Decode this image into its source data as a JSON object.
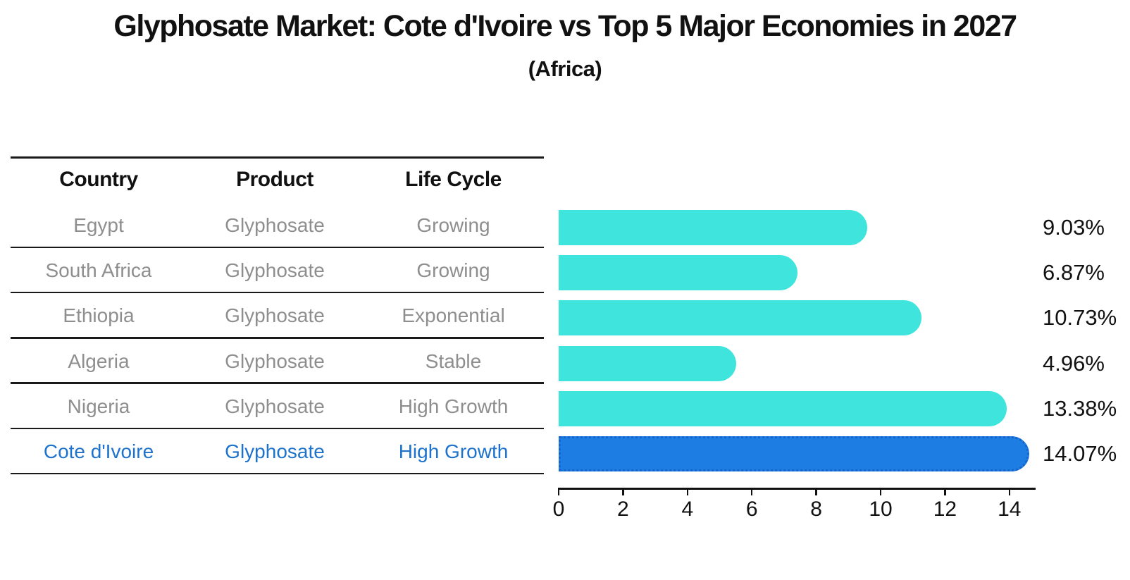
{
  "title": "Glyphosate Market: Cote d'Ivoire vs Top 5 Major Economies in 2027",
  "subtitle": "(Africa)",
  "table": {
    "headers": [
      "Country",
      "Product",
      "Life Cycle"
    ],
    "rows": [
      {
        "country": "Egypt",
        "product": "Glyphosate",
        "life_cycle": "Growing"
      },
      {
        "country": "South Africa",
        "product": "Glyphosate",
        "life_cycle": "Growing"
      },
      {
        "country": "Ethiopia",
        "product": "Glyphosate",
        "life_cycle": "Exponential"
      },
      {
        "country": "Algeria",
        "product": "Glyphosate",
        "life_cycle": "Stable"
      },
      {
        "country": "Nigeria",
        "product": "Glyphosate",
        "life_cycle": "High Growth"
      },
      {
        "country": "Cote d'Ivoire",
        "product": "Glyphosate",
        "life_cycle": "High Growth"
      }
    ],
    "highlight_row": 5
  },
  "chart_data": {
    "type": "bar",
    "orientation": "horizontal",
    "title": "Glyphosate Market: Cote d'Ivoire vs Top 5 Major Economies in 2027",
    "subtitle": "(Africa)",
    "categories": [
      "Egypt",
      "South Africa",
      "Ethiopia",
      "Algeria",
      "Nigeria",
      "Cote d'Ivoire"
    ],
    "values": [
      9.03,
      6.87,
      10.73,
      4.96,
      13.38,
      14.07
    ],
    "value_labels": [
      "9.03%",
      "6.87%",
      "10.73%",
      "4.96%",
      "13.38%",
      "14.07%"
    ],
    "x_ticks": [
      0,
      2,
      4,
      6,
      8,
      10,
      12,
      14
    ],
    "xlim": [
      0,
      14.8
    ],
    "grid": false,
    "legend": false,
    "highlight_index": 5,
    "bar_color_default": "#3FE4DC",
    "bar_color_highlight": "#1E7DE2",
    "highlight_border_color": "#1563CC"
  },
  "colors": {
    "background": "#FFFFFF",
    "text_primary": "#111111",
    "text_muted": "#8E8E8E",
    "highlight_text": "#1D72CC",
    "table_line": "#1A1A1A",
    "axis": "#111111"
  }
}
